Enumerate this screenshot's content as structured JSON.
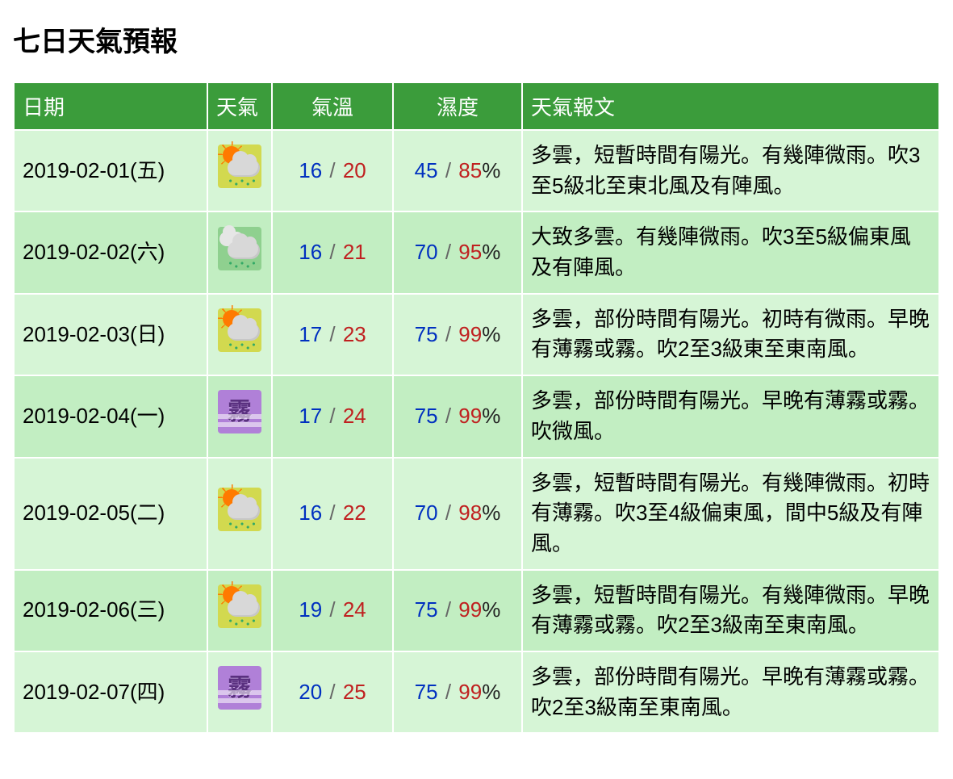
{
  "title": "七日天氣預報",
  "columns": {
    "date": "日期",
    "weather": "天氣",
    "temp": "氣溫",
    "humidity": "濕度",
    "desc": "天氣報文"
  },
  "colors": {
    "header_bg": "#3b9c3b",
    "header_fg": "#ffffff",
    "row_odd": "#d6f5d6",
    "row_even": "#c2eec2",
    "low_value": "#0030c0",
    "high_value": "#c02020"
  },
  "fog_char": "霧",
  "rows": [
    {
      "date": "2019-02-01(五)",
      "icon": "sun-cloud-rain",
      "icon_bg": "yellow",
      "temp_low": "16",
      "temp_high": "20",
      "hum_low": "45",
      "hum_high": "85",
      "desc": "多雲，短暫時間有陽光。有幾陣微雨。吹3至5級北至東北風及有陣風。"
    },
    {
      "date": "2019-02-02(六)",
      "icon": "clouds-rain",
      "icon_bg": "green",
      "temp_low": "16",
      "temp_high": "21",
      "hum_low": "70",
      "hum_high": "95",
      "desc": "大致多雲。有幾陣微雨。吹3至5級偏東風及有陣風。"
    },
    {
      "date": "2019-02-03(日)",
      "icon": "sun-cloud-rain",
      "icon_bg": "yellow",
      "temp_low": "17",
      "temp_high": "23",
      "hum_low": "75",
      "hum_high": "99",
      "desc": "多雲，部份時間有陽光。初時有微雨。早晚有薄霧或霧。吹2至3級東至東南風。"
    },
    {
      "date": "2019-02-04(一)",
      "icon": "fog",
      "icon_bg": "purple",
      "temp_low": "17",
      "temp_high": "24",
      "hum_low": "75",
      "hum_high": "99",
      "desc": "多雲，部份時間有陽光。早晚有薄霧或霧。吹微風。"
    },
    {
      "date": "2019-02-05(二)",
      "icon": "sun-cloud-rain",
      "icon_bg": "yellow",
      "temp_low": "16",
      "temp_high": "22",
      "hum_low": "70",
      "hum_high": "98",
      "desc": "多雲，短暫時間有陽光。有幾陣微雨。初時有薄霧。吹3至4級偏東風，間中5級及有陣風。"
    },
    {
      "date": "2019-02-06(三)",
      "icon": "sun-cloud-rain",
      "icon_bg": "yellow",
      "temp_low": "19",
      "temp_high": "24",
      "hum_low": "75",
      "hum_high": "99",
      "desc": "多雲，短暫時間有陽光。有幾陣微雨。早晚有薄霧或霧。吹2至3級南至東南風。"
    },
    {
      "date": "2019-02-07(四)",
      "icon": "fog",
      "icon_bg": "purple",
      "temp_low": "20",
      "temp_high": "25",
      "hum_low": "75",
      "hum_high": "99",
      "desc": "多雲，部份時間有陽光。早晚有薄霧或霧。吹2至3級南至東南風。"
    }
  ]
}
